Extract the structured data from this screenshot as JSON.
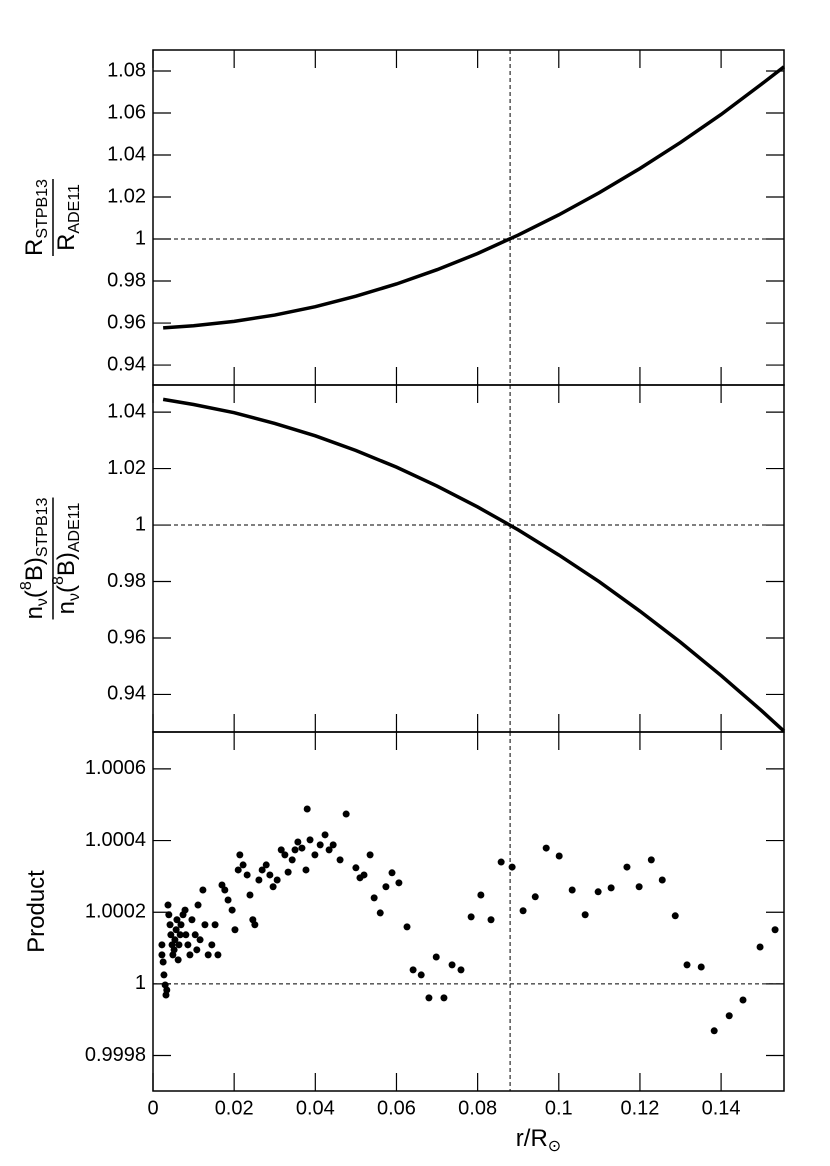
{
  "chart_data": [
    {
      "type": "line",
      "ylabel": {
        "numerator": [
          {
            "text": "R"
          },
          {
            "text": "STPB13",
            "shift": "sub"
          }
        ],
        "denominator": [
          {
            "text": "R"
          },
          {
            "text": "ADE11",
            "shift": "sub"
          }
        ]
      },
      "x": [
        0.0025,
        0.01,
        0.02,
        0.03,
        0.04,
        0.05,
        0.06,
        0.07,
        0.08,
        0.09,
        0.1,
        0.11,
        0.12,
        0.13,
        0.14,
        0.15,
        0.1555
      ],
      "values": [
        0.9577,
        0.9587,
        0.9608,
        0.9638,
        0.9678,
        0.9728,
        0.9786,
        0.9854,
        0.9931,
        1.0019,
        1.0115,
        1.0221,
        1.0336,
        1.046,
        1.0593,
        1.0738,
        1.082
      ],
      "color": "#000000",
      "xlim": [
        0,
        0.1555
      ],
      "ylim": [
        0.9305,
        1.09
      ],
      "yticks": [
        0.94,
        0.96,
        0.98,
        1,
        1.02,
        1.04,
        1.06,
        1.08
      ],
      "vline": 0.088,
      "hline": 1
    },
    {
      "type": "line",
      "ylabel": {
        "numerator": [
          {
            "text": "n"
          },
          {
            "text": "ν",
            "shift": "sub"
          },
          {
            "text": "("
          },
          {
            "text": "8",
            "shift": "sup"
          },
          {
            "text": "B)"
          },
          {
            "text": "STPB13",
            "shift": "sub"
          }
        ],
        "denominator": [
          {
            "text": "n"
          },
          {
            "text": "ν",
            "shift": "sub"
          },
          {
            "text": "("
          },
          {
            "text": "8",
            "shift": "sup"
          },
          {
            "text": "B)"
          },
          {
            "text": "ADE11",
            "shift": "sub"
          }
        ]
      },
      "x": [
        0.0025,
        0.01,
        0.02,
        0.03,
        0.04,
        0.05,
        0.06,
        0.07,
        0.08,
        0.09,
        0.1,
        0.11,
        0.12,
        0.13,
        0.14,
        0.15,
        0.1555
      ],
      "values": [
        1.0445,
        1.0427,
        1.0398,
        1.036,
        1.0316,
        1.0264,
        1.0205,
        1.0138,
        1.0064,
        0.9983,
        0.9894,
        0.9799,
        0.9695,
        0.9585,
        0.9467,
        0.9342,
        0.927
      ],
      "color": "#000000",
      "xlim": [
        0,
        0.1555
      ],
      "ylim": [
        0.9267,
        1.0496
      ],
      "yticks": [
        0.94,
        0.96,
        0.98,
        1,
        1.02,
        1.04
      ],
      "vline": 0.088,
      "hline": 1
    },
    {
      "type": "scatter",
      "ylabel": {
        "numerator": [
          {
            "text": "Product"
          }
        ]
      },
      "xlabel": [
        {
          "text": "r/R"
        },
        {
          "text": "⊙",
          "shift": "sub"
        }
      ],
      "x": [
        0.0022,
        0.0022,
        0.0025,
        0.0027,
        0.003,
        0.0032,
        0.0034,
        0.0037,
        0.0039,
        0.0042,
        0.0044,
        0.0047,
        0.0049,
        0.0052,
        0.0054,
        0.0057,
        0.0059,
        0.0062,
        0.0064,
        0.0067,
        0.0069,
        0.0074,
        0.0079,
        0.0081,
        0.0086,
        0.0091,
        0.0096,
        0.0104,
        0.0108,
        0.0116,
        0.0111,
        0.0123,
        0.0128,
        0.0136,
        0.0145,
        0.0153,
        0.016,
        0.017,
        0.0177,
        0.0185,
        0.0195,
        0.0202,
        0.021,
        0.0214,
        0.0222,
        0.0232,
        0.0239,
        0.0246,
        0.0251,
        0.0261,
        0.0269,
        0.0279,
        0.0288,
        0.0296,
        0.0306,
        0.0316,
        0.0325,
        0.0333,
        0.0343,
        0.035,
        0.0357,
        0.0367,
        0.0377,
        0.0387,
        0.0399,
        0.0412,
        0.0424,
        0.0434,
        0.0444,
        0.038,
        0.0476,
        0.0461,
        0.05,
        0.051,
        0.052,
        0.0535,
        0.0545,
        0.056,
        0.0574,
        0.0589,
        0.0606,
        0.0626,
        0.0641,
        0.0661,
        0.068,
        0.0698,
        0.0717,
        0.0737,
        0.0759,
        0.0784,
        0.0808,
        0.0833,
        0.0858,
        0.0885,
        0.0912,
        0.0942,
        0.0969,
        0.1001,
        0.1033,
        0.1065,
        0.1097,
        0.1129,
        0.1168,
        0.1198,
        0.1228,
        0.1255,
        0.1287,
        0.1316,
        0.1351,
        0.1383,
        0.142,
        0.1454,
        0.1496,
        0.1533
      ],
      "values": [
        1.000109,
        1.000081,
        1.000061,
        1.000025,
        0.999997,
        0.999969,
        0.999983,
        1.00022,
        1.000193,
        1.000165,
        1.000137,
        1.000109,
        1.000081,
        1.000095,
        1.000123,
        1.000151,
        1.000179,
        1.000067,
        1.000109,
        1.000137,
        1.000165,
        1.000193,
        1.000206,
        1.000137,
        1.000109,
        1.000081,
        1.000179,
        1.000137,
        1.000095,
        1.000123,
        1.00022,
        1.000262,
        1.000165,
        1.000081,
        1.000109,
        1.000165,
        1.000081,
        1.000276,
        1.000262,
        1.000234,
        1.000206,
        1.000151,
        1.000318,
        1.00036,
        1.000332,
        1.000304,
        1.000248,
        1.000179,
        1.000165,
        1.00029,
        1.000318,
        1.000332,
        1.000304,
        1.000271,
        1.00029,
        1.000374,
        1.00036,
        1.000312,
        1.000346,
        1.000374,
        1.000396,
        1.000379,
        1.000318,
        1.000402,
        1.00036,
        1.000388,
        1.000416,
        1.000374,
        1.000388,
        1.000488,
        1.000474,
        1.000346,
        1.000324,
        1.000296,
        1.000304,
        1.00036,
        1.00024,
        1.000198,
        1.000271,
        1.00031,
        1.000282,
        1.000159,
        1.000039,
        1.000025,
        0.999961,
        1.000075,
        0.999961,
        1.000053,
        1.000039,
        1.000187,
        1.000248,
        1.000179,
        1.00034,
        1.000326,
        1.000204,
        1.000243,
        1.000379,
        1.000357,
        1.000262,
        1.000193,
        1.000257,
        1.000268,
        1.000326,
        1.000271,
        1.000346,
        1.00029,
        1.00019,
        1.000053,
        1.000047,
        0.999869,
        0.999911,
        0.999955,
        1.000103,
        1.000151
      ],
      "color": "#000000",
      "xlim": [
        0,
        0.1555
      ],
      "ylim": [
        0.999701,
        1.000703
      ],
      "xticks": [
        0,
        0.02,
        0.04,
        0.06,
        0.08,
        0.1,
        0.12,
        0.14
      ],
      "yticks": [
        0.9998,
        1,
        1.0002,
        1.0004,
        1.0006
      ],
      "vline": 0.088,
      "hline": 1
    }
  ]
}
